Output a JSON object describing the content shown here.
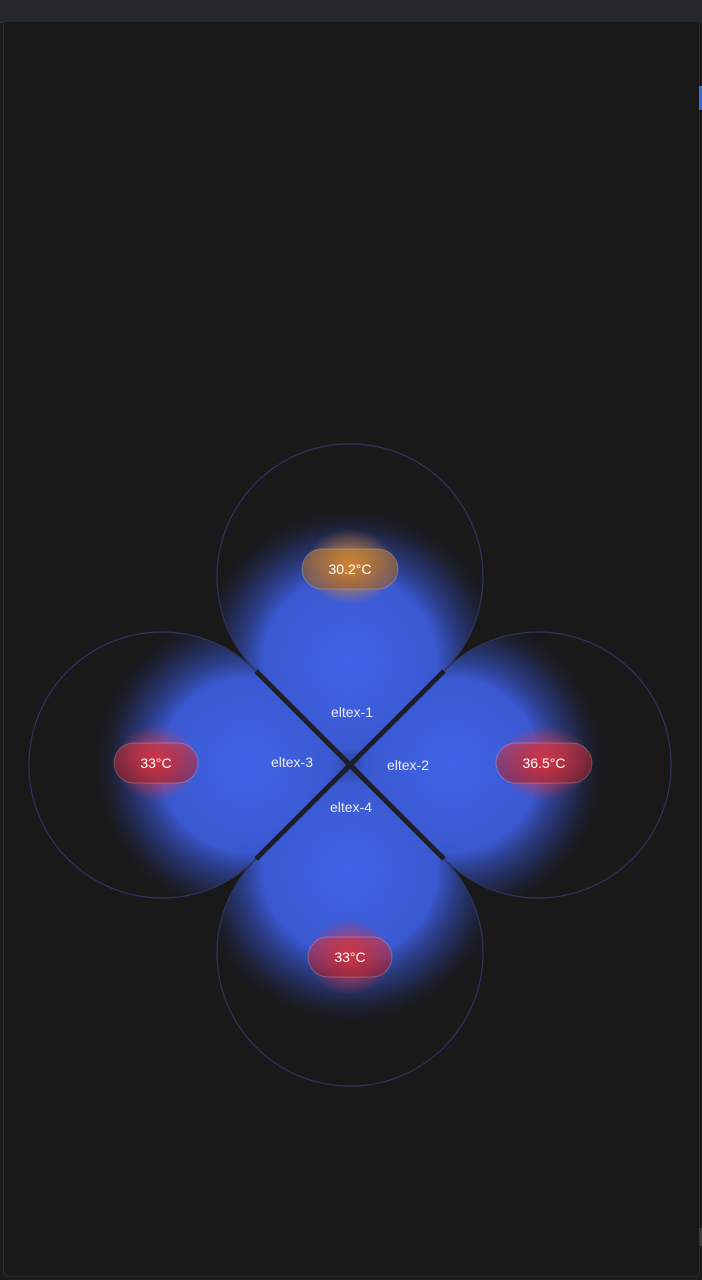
{
  "colors": {
    "background": "#191919",
    "zone_fill": "#3f63e6",
    "zone_outline": "#2e3560",
    "separator": "#1a1c26",
    "warm": "#e08a2a",
    "hot": "#e0343f"
  },
  "zones": [
    {
      "id": "eltex-1",
      "name": "eltex-1",
      "temperature": "30.2°C",
      "status": "warm"
    },
    {
      "id": "eltex-2",
      "name": "eltex-2",
      "temperature": "36.5°C",
      "status": "hot"
    },
    {
      "id": "eltex-3",
      "name": "eltex-3",
      "temperature": "33°C",
      "status": "hot"
    },
    {
      "id": "eltex-4",
      "name": "eltex-4",
      "temperature": "33°C",
      "status": "hot"
    }
  ]
}
